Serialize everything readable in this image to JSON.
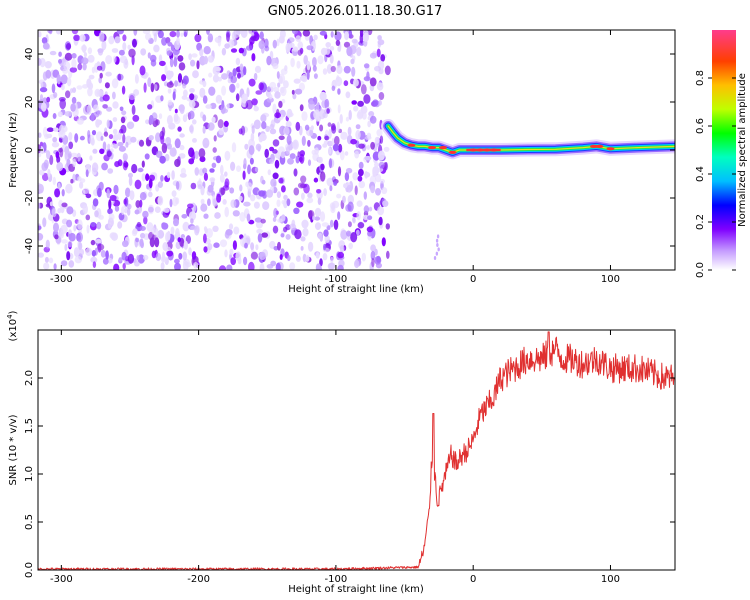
{
  "title": "GN05.2026.011.18.30.G17",
  "colorbar": {
    "label": "Normalized spectral amplitude",
    "ticks": [
      "0.0",
      "0.2",
      "0.4",
      "0.6",
      "0.8"
    ],
    "tick_values": [
      0.0,
      0.2,
      0.4,
      0.6,
      0.8
    ],
    "range": [
      0,
      1
    ]
  },
  "chart_data": [
    {
      "type": "heatmap",
      "xlabel": "Height of straight line (km)",
      "ylabel": "Frequency (Hz)",
      "xlim": [
        -317,
        147
      ],
      "ylim": [
        -50,
        50
      ],
      "xticks": [
        -300,
        -200,
        -100,
        0,
        100
      ],
      "xtick_labels": [
        "-300",
        "-200",
        "-100",
        "0",
        "100"
      ],
      "yticks": [
        -40,
        -20,
        0,
        20,
        40
      ],
      "ytick_labels": [
        "-40",
        "-20",
        "0",
        "20",
        "40"
      ],
      "noise_region_x": [
        -317,
        -62
      ],
      "signal_trace": {
        "x": [
          -62,
          -58,
          -55,
          -50,
          -45,
          -40,
          -35,
          -30,
          -25,
          -20,
          -15,
          -10,
          -5,
          0,
          20,
          40,
          60,
          80,
          90,
          100,
          120,
          147
        ],
        "freq": [
          10,
          7,
          5,
          3,
          2,
          1.5,
          1.5,
          1,
          1,
          0,
          -1,
          0,
          0,
          0,
          0,
          0.2,
          0.3,
          1,
          1.5,
          0.5,
          1,
          1.5
        ]
      },
      "grid": false
    },
    {
      "type": "line",
      "xlabel": "Height of straight line (km)",
      "ylabel": "SNR (10 * v/v)",
      "y_multiplier": "(x10",
      "y_multiplier_exp": "4",
      "y_multiplier_close": ")",
      "xlim": [
        -317,
        147
      ],
      "ylim": [
        0,
        2.5
      ],
      "xticks": [
        -300,
        -200,
        -100,
        0,
        100
      ],
      "xtick_labels": [
        "-300",
        "-200",
        "-100",
        "0",
        "100"
      ],
      "yticks": [
        0,
        0.5,
        1,
        1.5,
        2
      ],
      "ytick_labels": [
        "0.0",
        "0.5",
        "1.0",
        "1.5",
        "2.0"
      ],
      "series": [
        {
          "color": "#e03030",
          "x": [
            -317,
            -100,
            -40,
            -36,
            -32,
            -30,
            -28,
            -26,
            -24,
            -20,
            -16,
            -12,
            -8,
            -4,
            0,
            5,
            10,
            15,
            20,
            25,
            30,
            35,
            40,
            50,
            55,
            60,
            65,
            70,
            80,
            90,
            100,
            110,
            120,
            130,
            140,
            147
          ],
          "values": [
            0.01,
            0.01,
            0.03,
            0.2,
            0.6,
            1.2,
            1.0,
            0.7,
            0.8,
            1.0,
            1.2,
            1.1,
            1.2,
            1.25,
            1.35,
            1.6,
            1.7,
            1.8,
            2.0,
            2.05,
            2.1,
            2.15,
            2.2,
            2.2,
            2.25,
            2.3,
            2.2,
            2.2,
            2.15,
            2.2,
            2.1,
            2.1,
            2.1,
            2.05,
            2.0,
            2.0
          ]
        }
      ],
      "grid": false
    }
  ]
}
